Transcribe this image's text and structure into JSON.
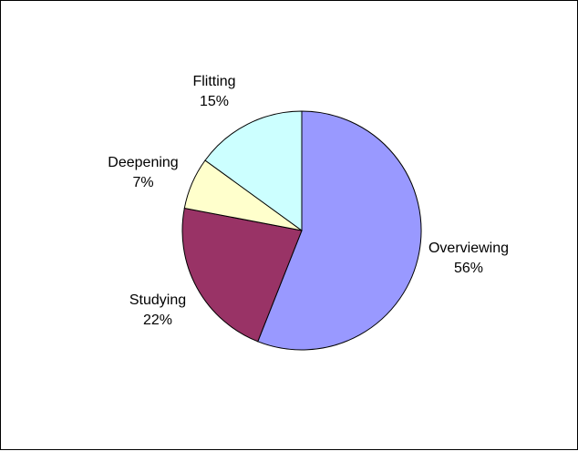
{
  "chart_data": {
    "type": "pie",
    "title": "",
    "slices": [
      {
        "label": "Overviewing",
        "value": 56,
        "percent_label": "56%",
        "color": "#9999FF"
      },
      {
        "label": "Studying",
        "value": 22,
        "percent_label": "22%",
        "color": "#993366"
      },
      {
        "label": "Deepening",
        "value": 7,
        "percent_label": "7%",
        "color": "#FFFFCC"
      },
      {
        "label": "Flitting",
        "value": 15,
        "percent_label": "15%",
        "color": "#CCFFFF"
      }
    ],
    "start_angle_deg": 0,
    "direction": "clockwise",
    "legend": "none"
  }
}
